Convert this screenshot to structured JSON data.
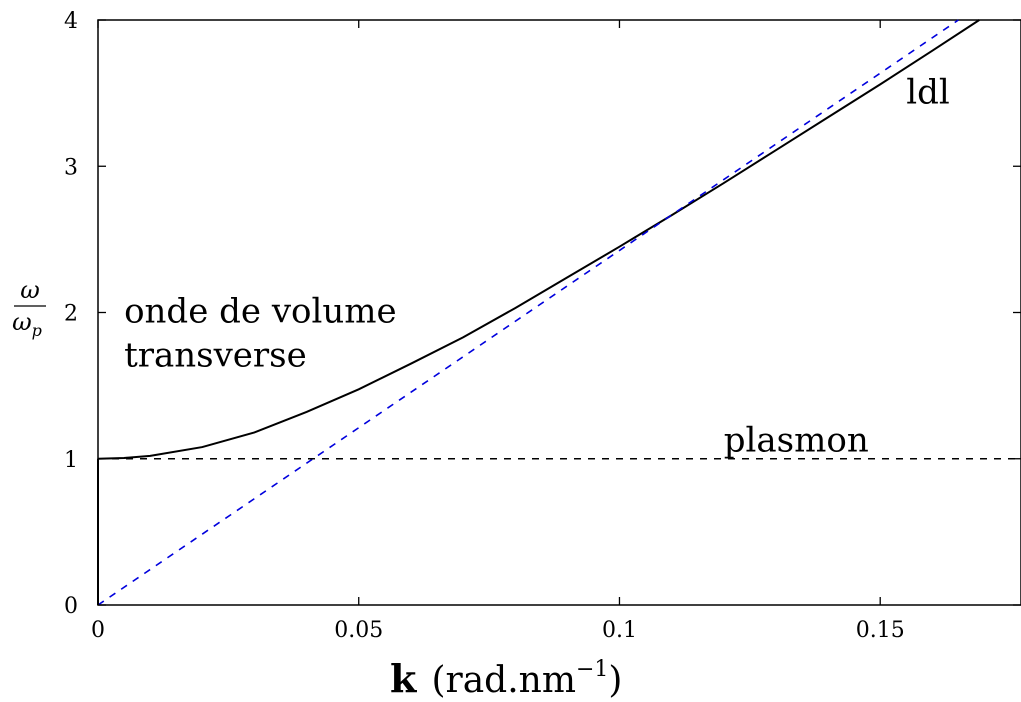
{
  "chart_data": {
    "type": "line",
    "title": "",
    "xlabel_bold": "k",
    "xlabel_rest": "(rad.nm",
    "xlabel_exp": "−1",
    "xlabel_close": ")",
    "ylabel_num": "ω",
    "ylabel_den": "ω",
    "ylabel_den_sub": "p",
    "xlim": [
      0,
      0.177
    ],
    "ylim": [
      0,
      4
    ],
    "x_ticks": [
      {
        "value": 0,
        "label": "0"
      },
      {
        "value": 0.05,
        "label": "0.05"
      },
      {
        "value": 0.1,
        "label": "0.1"
      },
      {
        "value": 0.15,
        "label": "0.15"
      }
    ],
    "y_ticks": [
      {
        "value": 0,
        "label": "0"
      },
      {
        "value": 1,
        "label": "1"
      },
      {
        "value": 2,
        "label": "2"
      },
      {
        "value": 3,
        "label": "3"
      },
      {
        "value": 4,
        "label": "4"
      }
    ],
    "grid": false,
    "series": [
      {
        "style": "solid",
        "color": "#000000",
        "points": [
          [
            0,
            1.0
          ],
          [
            0.005,
            1.005
          ],
          [
            0.01,
            1.02
          ],
          [
            0.02,
            1.08
          ],
          [
            0.03,
            1.18
          ],
          [
            0.04,
            1.32
          ],
          [
            0.05,
            1.475
          ],
          [
            0.06,
            1.65
          ],
          [
            0.07,
            1.83
          ],
          [
            0.08,
            2.03
          ],
          [
            0.09,
            2.24
          ],
          [
            0.1,
            2.45
          ],
          [
            0.11,
            2.665
          ],
          [
            0.12,
            2.885
          ],
          [
            0.13,
            3.11
          ],
          [
            0.14,
            3.335
          ],
          [
            0.15,
            3.56
          ],
          [
            0.16,
            3.79
          ],
          [
            0.169,
            4.0
          ]
        ]
      },
      {
        "style": "dashed",
        "color": "#0000dd",
        "points": [
          [
            0,
            0
          ],
          [
            0.165,
            4.0
          ]
        ]
      },
      {
        "style": "dashed",
        "color": "#000000",
        "points": [
          [
            0,
            1
          ],
          [
            0.177,
            1
          ]
        ]
      },
      {
        "style": "solid",
        "color": "#000000",
        "points": [
          [
            0,
            0
          ],
          [
            0,
            1
          ]
        ]
      }
    ],
    "annotations": [
      {
        "id": "onde1",
        "text": "onde de volume",
        "x": 0.005,
        "y": 1.93
      },
      {
        "id": "onde2",
        "text": "transverse",
        "x": 0.005,
        "y": 1.63
      },
      {
        "id": "ldl",
        "text": "ldl",
        "x": 0.155,
        "y": 3.43
      },
      {
        "id": "plasmon",
        "text": "plasmon",
        "x": 0.12,
        "y": 1.05
      }
    ]
  }
}
